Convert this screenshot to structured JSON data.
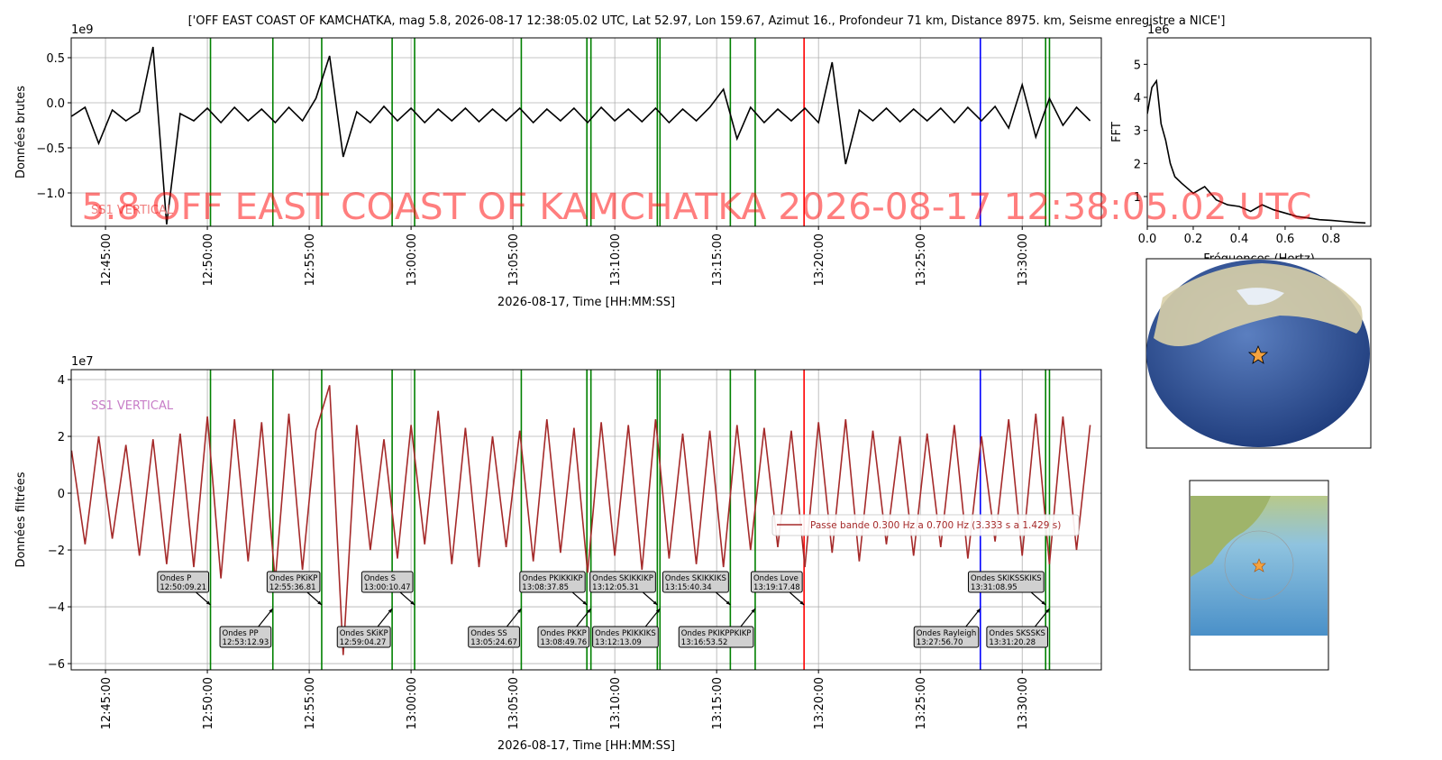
{
  "watermark": "5.8 OFF EAST COAST OF KAMCHATKA 2026-08-17 12:38:05.02 UTC",
  "phases": [
    {
      "label": "Ondes P",
      "time": "12:50:09.21",
      "color": "green"
    },
    {
      "label": "Ondes PP",
      "time": "12:53:12.93",
      "color": "green"
    },
    {
      "label": "Ondes PKiKP",
      "time": "12:55:36.81",
      "color": "green"
    },
    {
      "label": "Ondes SKiKP",
      "time": "12:59:04.27",
      "color": "green"
    },
    {
      "label": "Ondes S",
      "time": "13:00:10.47",
      "color": "green"
    },
    {
      "label": "Ondes SS",
      "time": "13:05:24.67",
      "color": "green"
    },
    {
      "label": "Ondes PKIKKIKP",
      "time": "13:08:37.85",
      "color": "green"
    },
    {
      "label": "Ondes PKKP",
      "time": "13:08:49.76",
      "color": "green"
    },
    {
      "label": "Ondes SKIKKIKP",
      "time": "13:12:05.31",
      "color": "green"
    },
    {
      "label": "Ondes PKIKKIKS",
      "time": "13:12:13.09",
      "color": "green"
    },
    {
      "label": "Ondes SKIKKIKS",
      "time": "13:15:40.34",
      "color": "green"
    },
    {
      "label": "Ondes PKIKPPKIKP",
      "time": "13:16:53.52",
      "color": "green"
    },
    {
      "label": "Ondes Love",
      "time": "13:19:17.48",
      "color": "red"
    },
    {
      "label": "Ondes Rayleigh",
      "time": "13:27:56.70",
      "color": "blue"
    },
    {
      "label": "Ondes SKIKSSKIKS",
      "time": "13:31:08.95",
      "color": "green"
    },
    {
      "label": "Ondes SKSSKS",
      "time": "13:31:20.28",
      "color": "green"
    }
  ],
  "chart_data": [
    {
      "type": "line",
      "title": "['OFF EAST COAST OF KAMCHATKA, mag 5.8, 2026-08-17 12:38:05.02 UTC, Lat 52.97, Lon 159.67, Azimut 16., Profondeur 71 km, Distance 8975. km, Seisme enregistre a NICE']",
      "ylabel": "Données brutes",
      "xlabel": "2026-08-17, Time [HH:MM:SS]",
      "offset_label": "1e9",
      "station_label": "SS1 VERTICAL",
      "station_label_color": "#f08080",
      "grid": true,
      "phase_lines": true,
      "phase_annotations": false,
      "xlim": [
        "12:43:19",
        "13:33:53"
      ],
      "xticks": [
        "12:45:00",
        "12:50:00",
        "12:55:00",
        "13:00:00",
        "13:05:00",
        "13:10:00",
        "13:15:00",
        "13:20:00",
        "13:25:00",
        "13:30:00"
      ],
      "ylim": [
        -1.37,
        0.72
      ],
      "yticks": [
        0.5,
        {
          "value": 0,
          "label": "0.0"
        },
        {
          "value": -0.5,
          "label": "−0.5"
        },
        {
          "value": -1,
          "label": "−1.0"
        }
      ],
      "x": [
        "12:43:20",
        "12:44:00",
        "12:44:40",
        "12:45:20",
        "12:46:00",
        "12:46:40",
        "12:47:20",
        "12:48:00",
        "12:48:40",
        "12:49:20",
        "12:50:00",
        "12:50:40",
        "12:51:20",
        "12:52:00",
        "12:52:40",
        "12:53:20",
        "12:54:00",
        "12:54:40",
        "12:55:20",
        "12:56:00",
        "12:56:40",
        "12:57:20",
        "12:58:00",
        "12:58:40",
        "12:59:20",
        "13:00:00",
        "13:00:40",
        "13:01:20",
        "13:02:00",
        "13:02:40",
        "13:03:20",
        "13:04:00",
        "13:04:40",
        "13:05:20",
        "13:06:00",
        "13:06:40",
        "13:07:20",
        "13:08:00",
        "13:08:40",
        "13:09:20",
        "13:10:00",
        "13:10:40",
        "13:11:20",
        "13:12:00",
        "13:12:40",
        "13:13:20",
        "13:14:00",
        "13:14:40",
        "13:15:20",
        "13:16:00",
        "13:16:40",
        "13:17:20",
        "13:18:00",
        "13:18:40",
        "13:19:20",
        "13:20:00",
        "13:20:40",
        "13:21:20",
        "13:22:00",
        "13:22:40",
        "13:23:20",
        "13:24:00",
        "13:24:40",
        "13:25:20",
        "13:26:00",
        "13:26:40",
        "13:27:20",
        "13:28:00",
        "13:28:40",
        "13:29:20",
        "13:30:00",
        "13:30:40",
        "13:31:20",
        "13:32:00",
        "13:32:40",
        "13:33:20"
      ],
      "series": [
        {
          "color": "#000000",
          "values": [
            -0.15,
            -0.05,
            -0.45,
            -0.08,
            -0.2,
            -0.1,
            0.62,
            -1.35,
            -0.12,
            -0.2,
            -0.06,
            -0.22,
            -0.05,
            -0.2,
            -0.07,
            -0.22,
            -0.05,
            -0.2,
            0.05,
            0.52,
            -0.6,
            -0.1,
            -0.22,
            -0.04,
            -0.2,
            -0.06,
            -0.22,
            -0.07,
            -0.2,
            -0.06,
            -0.21,
            -0.07,
            -0.2,
            -0.06,
            -0.22,
            -0.07,
            -0.2,
            -0.06,
            -0.22,
            -0.05,
            -0.2,
            -0.07,
            -0.21,
            -0.06,
            -0.22,
            -0.07,
            -0.2,
            -0.05,
            0.15,
            -0.4,
            -0.05,
            -0.22,
            -0.07,
            -0.2,
            -0.06,
            -0.22,
            0.45,
            -0.68,
            -0.08,
            -0.2,
            -0.06,
            -0.21,
            -0.07,
            -0.2,
            -0.06,
            -0.22,
            -0.05,
            -0.2,
            -0.04,
            -0.28,
            0.2,
            -0.38,
            0.05,
            -0.25,
            -0.05,
            -0.2
          ]
        }
      ]
    },
    {
      "type": "line",
      "ylabel": "Données filtrées",
      "xlabel": "2026-08-17, Time [HH:MM:SS]",
      "offset_label": "1e7",
      "station_label": "SS1 VERTICAL",
      "station_label_color": "#c77dc7",
      "grid": true,
      "phase_lines": true,
      "phase_annotations": true,
      "xlim": [
        "12:43:19",
        "13:33:53"
      ],
      "xticks": [
        "12:45:00",
        "12:50:00",
        "12:55:00",
        "13:00:00",
        "13:05:00",
        "13:10:00",
        "13:15:00",
        "13:20:00",
        "13:25:00",
        "13:30:00"
      ],
      "ylim": [
        -6.22,
        4.35
      ],
      "yticks": [
        4,
        2,
        0,
        {
          "value": -2,
          "label": "−2"
        },
        {
          "value": -4,
          "label": "−4"
        },
        {
          "value": -6,
          "label": "−6"
        }
      ],
      "x": [
        "12:43:20",
        "12:44:00",
        "12:44:40",
        "12:45:20",
        "12:46:00",
        "12:46:40",
        "12:47:20",
        "12:48:00",
        "12:48:40",
        "12:49:20",
        "12:50:00",
        "12:50:40",
        "12:51:20",
        "12:52:00",
        "12:52:40",
        "12:53:20",
        "12:54:00",
        "12:54:40",
        "12:55:20",
        "12:56:00",
        "12:56:40",
        "12:57:20",
        "12:58:00",
        "12:58:40",
        "12:59:20",
        "13:00:00",
        "13:00:40",
        "13:01:20",
        "13:02:00",
        "13:02:40",
        "13:03:20",
        "13:04:00",
        "13:04:40",
        "13:05:20",
        "13:06:00",
        "13:06:40",
        "13:07:20",
        "13:08:00",
        "13:08:40",
        "13:09:20",
        "13:10:00",
        "13:10:40",
        "13:11:20",
        "13:12:00",
        "13:12:40",
        "13:13:20",
        "13:14:00",
        "13:14:40",
        "13:15:20",
        "13:16:00",
        "13:16:40",
        "13:17:20",
        "13:18:00",
        "13:18:40",
        "13:19:20",
        "13:20:00",
        "13:20:40",
        "13:21:20",
        "13:22:00",
        "13:22:40",
        "13:23:20",
        "13:24:00",
        "13:24:40",
        "13:25:20",
        "13:26:00",
        "13:26:40",
        "13:27:20",
        "13:28:00",
        "13:28:40",
        "13:29:20",
        "13:30:00",
        "13:30:40",
        "13:31:20",
        "13:32:00",
        "13:32:40",
        "13:33:20"
      ],
      "series": [
        {
          "name": "Passe bande 0.300 Hz a 0.700 Hz (3.333 s a 1.429 s)",
          "color": "#a52a2a",
          "values": [
            1.5,
            -1.8,
            2.0,
            -1.6,
            1.7,
            -2.2,
            1.9,
            -2.5,
            2.1,
            -2.6,
            2.7,
            -3.0,
            2.6,
            -2.4,
            2.5,
            -3.1,
            2.8,
            -2.7,
            2.2,
            3.8,
            -5.7,
            2.4,
            -2.0,
            1.9,
            -2.3,
            2.4,
            -1.8,
            2.9,
            -2.5,
            2.3,
            -2.6,
            2.0,
            -1.9,
            2.2,
            -2.4,
            2.6,
            -2.1,
            2.3,
            -2.8,
            2.5,
            -2.2,
            2.4,
            -2.7,
            2.6,
            -2.3,
            2.1,
            -2.5,
            2.2,
            -2.6,
            2.4,
            -2.0,
            2.3,
            -1.9,
            2.2,
            -2.6,
            2.5,
            -2.1,
            2.6,
            -2.4,
            2.2,
            -1.8,
            2.0,
            -2.2,
            2.1,
            -1.9,
            2.4,
            -2.3,
            2.0,
            -1.7,
            2.6,
            -2.2,
            2.8,
            -2.5,
            2.7,
            -2.0,
            2.4
          ]
        }
      ]
    },
    {
      "type": "line",
      "ylabel": "FFT",
      "xlabel": "Fréquences (Hertz)",
      "offset_label": "1e6",
      "grid": false,
      "xlim": [
        0,
        0.973
      ],
      "xticks": [
        {
          "value": 0,
          "label": "0.0"
        },
        0.2,
        0.4,
        0.6,
        0.8
      ],
      "ylim": [
        0.1,
        5.8
      ],
      "yticks": [
        1,
        2,
        3,
        4,
        5
      ],
      "x": [
        0,
        0.02,
        0.04,
        0.06,
        0.08,
        0.1,
        0.12,
        0.15,
        0.2,
        0.25,
        0.3,
        0.35,
        0.4,
        0.45,
        0.5,
        0.55,
        0.6,
        0.65,
        0.7,
        0.75,
        0.8,
        0.85,
        0.9,
        0.95
      ],
      "series": [
        {
          "color": "#000000",
          "values": [
            3.5,
            4.3,
            4.5,
            3.2,
            2.7,
            2.0,
            1.6,
            1.4,
            1.1,
            1.3,
            0.9,
            0.75,
            0.7,
            0.55,
            0.75,
            0.6,
            0.5,
            0.4,
            0.35,
            0.3,
            0.28,
            0.25,
            0.22,
            0.2
          ]
        }
      ]
    }
  ]
}
